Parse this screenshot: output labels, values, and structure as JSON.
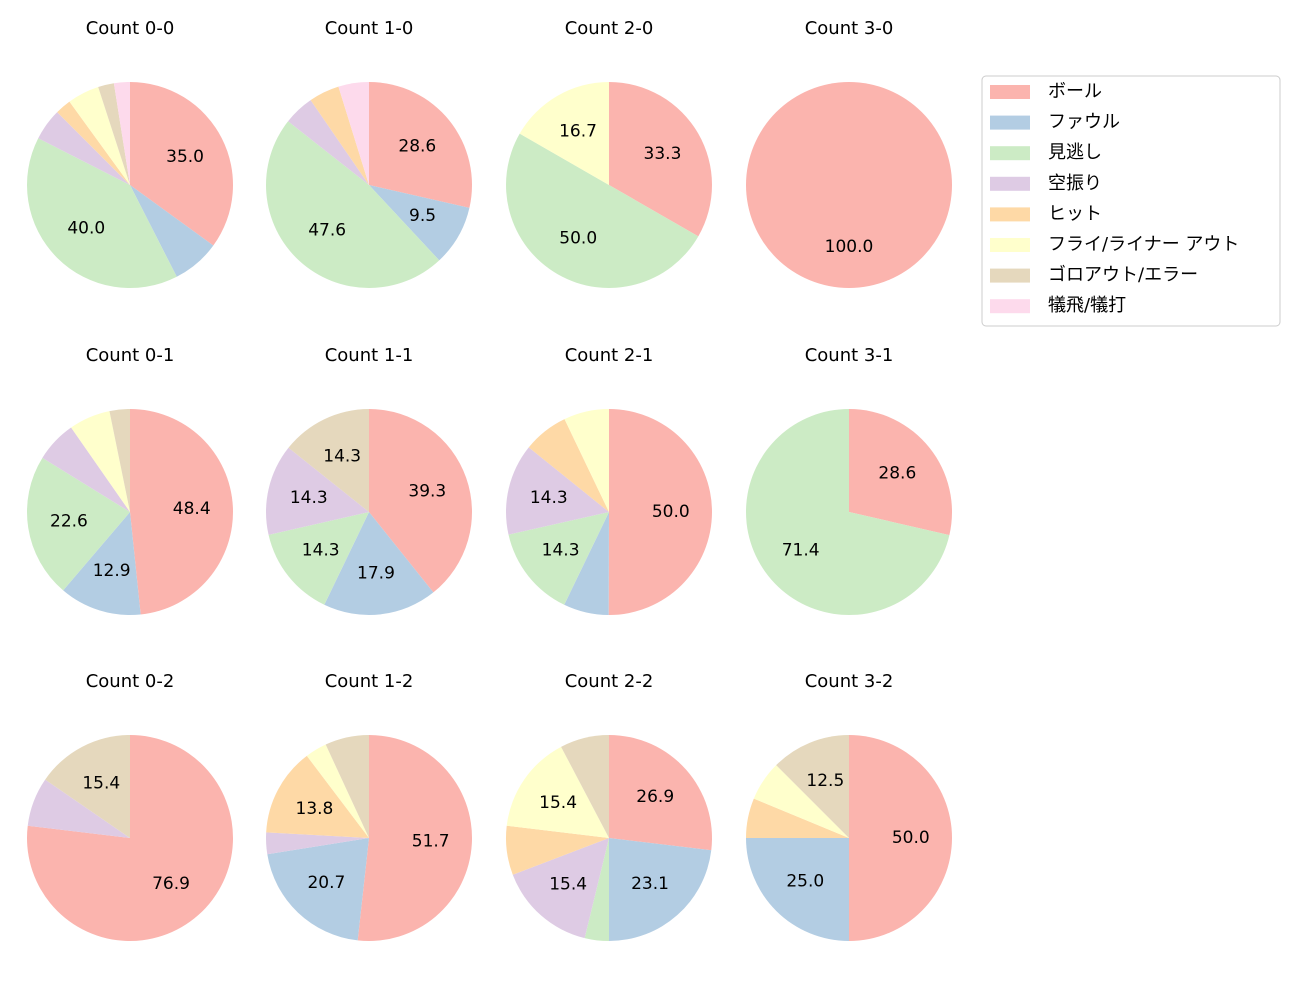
{
  "chart_data": [
    {
      "type": "pie",
      "title": "Count 0-0",
      "categories": [
        "ボール",
        "ファウル",
        "見逃し",
        "空振り",
        "ヒット",
        "フライ/ライナー アウト",
        "ゴロアウト/エラー",
        "犠飛/犠打"
      ],
      "colors": [
        "#fbb4ae",
        "#b3cde3",
        "#ccebc5",
        "#decbe4",
        "#fed9a6",
        "#ffffcc",
        "#e5d8bd",
        "#fddaec"
      ],
      "values": [
        35.0,
        7.5,
        40.0,
        5.0,
        2.5,
        5.0,
        2.5,
        2.5
      ],
      "value_labels": [
        "35.0",
        null,
        "40.0",
        null,
        null,
        null,
        null,
        null
      ],
      "legend": "upper right"
    },
    {
      "type": "pie",
      "title": "Count 1-0",
      "categories": [
        "ボール",
        "ファウル",
        "見逃し",
        "空振り",
        "ヒット",
        "フライ/ライナー アウト",
        "ゴロアウト/エラー",
        "犠飛/犠打"
      ],
      "colors": [
        "#fbb4ae",
        "#b3cde3",
        "#ccebc5",
        "#decbe4",
        "#fed9a6",
        "#ffffcc",
        "#e5d8bd",
        "#fddaec"
      ],
      "values": [
        28.6,
        9.5,
        47.6,
        4.8,
        4.8,
        0,
        0,
        4.8
      ],
      "value_labels": [
        "28.6",
        "9.5",
        "47.6",
        null,
        null,
        null,
        null,
        null
      ]
    },
    {
      "type": "pie",
      "title": "Count 2-0",
      "categories": [
        "ボール",
        "ファウル",
        "見逃し",
        "空振り",
        "ヒット",
        "フライ/ライナー アウト",
        "ゴロアウト/エラー",
        "犠飛/犠打"
      ],
      "colors": [
        "#fbb4ae",
        "#b3cde3",
        "#ccebc5",
        "#decbe4",
        "#fed9a6",
        "#ffffcc",
        "#e5d8bd",
        "#fddaec"
      ],
      "values": [
        33.3,
        0,
        50.0,
        0,
        0,
        16.7,
        0,
        0
      ],
      "value_labels": [
        "33.3",
        null,
        "50.0",
        null,
        null,
        "16.7",
        null,
        null
      ]
    },
    {
      "type": "pie",
      "title": "Count 3-0",
      "categories": [
        "ボール",
        "ファウル",
        "見逃し",
        "空振り",
        "ヒット",
        "フライ/ライナー アウト",
        "ゴロアウト/エラー",
        "犠飛/犠打"
      ],
      "colors": [
        "#fbb4ae",
        "#b3cde3",
        "#ccebc5",
        "#decbe4",
        "#fed9a6",
        "#ffffcc",
        "#e5d8bd",
        "#fddaec"
      ],
      "values": [
        100.0,
        0,
        0,
        0,
        0,
        0,
        0,
        0
      ],
      "value_labels": [
        "100.0",
        null,
        null,
        null,
        null,
        null,
        null,
        null
      ]
    },
    {
      "type": "pie",
      "title": "Count 0-1",
      "categories": [
        "ボール",
        "ファウル",
        "見逃し",
        "空振り",
        "ヒット",
        "フライ/ライナー アウト",
        "ゴロアウト/エラー",
        "犠飛/犠打"
      ],
      "colors": [
        "#fbb4ae",
        "#b3cde3",
        "#ccebc5",
        "#decbe4",
        "#fed9a6",
        "#ffffcc",
        "#e5d8bd",
        "#fddaec"
      ],
      "values": [
        48.4,
        12.9,
        22.6,
        6.5,
        0,
        6.5,
        3.2,
        0
      ],
      "value_labels": [
        "48.4",
        "12.9",
        "22.6",
        null,
        null,
        null,
        null,
        null
      ]
    },
    {
      "type": "pie",
      "title": "Count 1-1",
      "categories": [
        "ボール",
        "ファウル",
        "見逃し",
        "空振り",
        "ヒット",
        "フライ/ライナー アウト",
        "ゴロアウト/エラー",
        "犠飛/犠打"
      ],
      "colors": [
        "#fbb4ae",
        "#b3cde3",
        "#ccebc5",
        "#decbe4",
        "#fed9a6",
        "#ffffcc",
        "#e5d8bd",
        "#fddaec"
      ],
      "values": [
        39.3,
        17.9,
        14.3,
        14.3,
        0,
        0,
        14.3,
        0
      ],
      "value_labels": [
        "39.3",
        "17.9",
        "14.3",
        "14.3",
        null,
        null,
        "14.3",
        null
      ]
    },
    {
      "type": "pie",
      "title": "Count 2-1",
      "categories": [
        "ボール",
        "ファウル",
        "見逃し",
        "空振り",
        "ヒット",
        "フライ/ライナー アウト",
        "ゴロアウト/エラー",
        "犠飛/犠打"
      ],
      "colors": [
        "#fbb4ae",
        "#b3cde3",
        "#ccebc5",
        "#decbe4",
        "#fed9a6",
        "#ffffcc",
        "#e5d8bd",
        "#fddaec"
      ],
      "values": [
        50.0,
        7.1,
        14.3,
        14.3,
        7.1,
        7.1,
        0,
        0
      ],
      "value_labels": [
        "50.0",
        null,
        "14.3",
        "14.3",
        null,
        null,
        null,
        null
      ]
    },
    {
      "type": "pie",
      "title": "Count 3-1",
      "categories": [
        "ボール",
        "ファウル",
        "見逃し",
        "空振り",
        "ヒット",
        "フライ/ライナー アウト",
        "ゴロアウト/エラー",
        "犠飛/犠打"
      ],
      "colors": [
        "#fbb4ae",
        "#b3cde3",
        "#ccebc5",
        "#decbe4",
        "#fed9a6",
        "#ffffcc",
        "#e5d8bd",
        "#fddaec"
      ],
      "values": [
        28.6,
        0,
        71.4,
        0,
        0,
        0,
        0,
        0
      ],
      "value_labels": [
        "28.6",
        null,
        "71.4",
        null,
        null,
        null,
        null,
        null
      ]
    },
    {
      "type": "pie",
      "title": "Count 0-2",
      "categories": [
        "ボール",
        "ファウル",
        "見逃し",
        "空振り",
        "ヒット",
        "フライ/ライナー アウト",
        "ゴロアウト/エラー",
        "犠飛/犠打"
      ],
      "colors": [
        "#fbb4ae",
        "#b3cde3",
        "#ccebc5",
        "#decbe4",
        "#fed9a6",
        "#ffffcc",
        "#e5d8bd",
        "#fddaec"
      ],
      "values": [
        76.9,
        0,
        0,
        7.7,
        0,
        0,
        15.4,
        0
      ],
      "value_labels": [
        "76.9",
        null,
        null,
        null,
        null,
        null,
        "15.4",
        null
      ]
    },
    {
      "type": "pie",
      "title": "Count 1-2",
      "categories": [
        "ボール",
        "ファウル",
        "見逃し",
        "空振り",
        "ヒット",
        "フライ/ライナー アウト",
        "ゴロアウト/エラー",
        "犠飛/犠打"
      ],
      "colors": [
        "#fbb4ae",
        "#b3cde3",
        "#ccebc5",
        "#decbe4",
        "#fed9a6",
        "#ffffcc",
        "#e5d8bd",
        "#fddaec"
      ],
      "values": [
        51.7,
        20.7,
        0,
        3.4,
        13.8,
        3.4,
        6.9,
        0
      ],
      "value_labels": [
        "51.7",
        "20.7",
        null,
        null,
        "13.8",
        null,
        null,
        null
      ]
    },
    {
      "type": "pie",
      "title": "Count 2-2",
      "categories": [
        "ボール",
        "ファウル",
        "見逃し",
        "空振り",
        "ヒット",
        "フライ/ライナー アウト",
        "ゴロアウト/エラー",
        "犠飛/犠打"
      ],
      "colors": [
        "#fbb4ae",
        "#b3cde3",
        "#ccebc5",
        "#decbe4",
        "#fed9a6",
        "#ffffcc",
        "#e5d8bd",
        "#fddaec"
      ],
      "values": [
        26.9,
        23.1,
        3.8,
        15.4,
        7.7,
        15.4,
        7.7,
        0
      ],
      "value_labels": [
        "26.9",
        "23.1",
        null,
        "15.4",
        null,
        "15.4",
        null,
        null
      ]
    },
    {
      "type": "pie",
      "title": "Count 3-2",
      "categories": [
        "ボール",
        "ファウル",
        "見逃し",
        "空振り",
        "ヒット",
        "フライ/ライナー アウト",
        "ゴロアウト/エラー",
        "犠飛/犠打"
      ],
      "colors": [
        "#fbb4ae",
        "#b3cde3",
        "#ccebc5",
        "#decbe4",
        "#fed9a6",
        "#ffffcc",
        "#e5d8bd",
        "#fddaec"
      ],
      "values": [
        50.0,
        25.0,
        0,
        0,
        6.25,
        6.25,
        12.5,
        0
      ],
      "value_labels": [
        "50.0",
        "25.0",
        null,
        null,
        null,
        null,
        "12.5",
        null
      ]
    }
  ]
}
